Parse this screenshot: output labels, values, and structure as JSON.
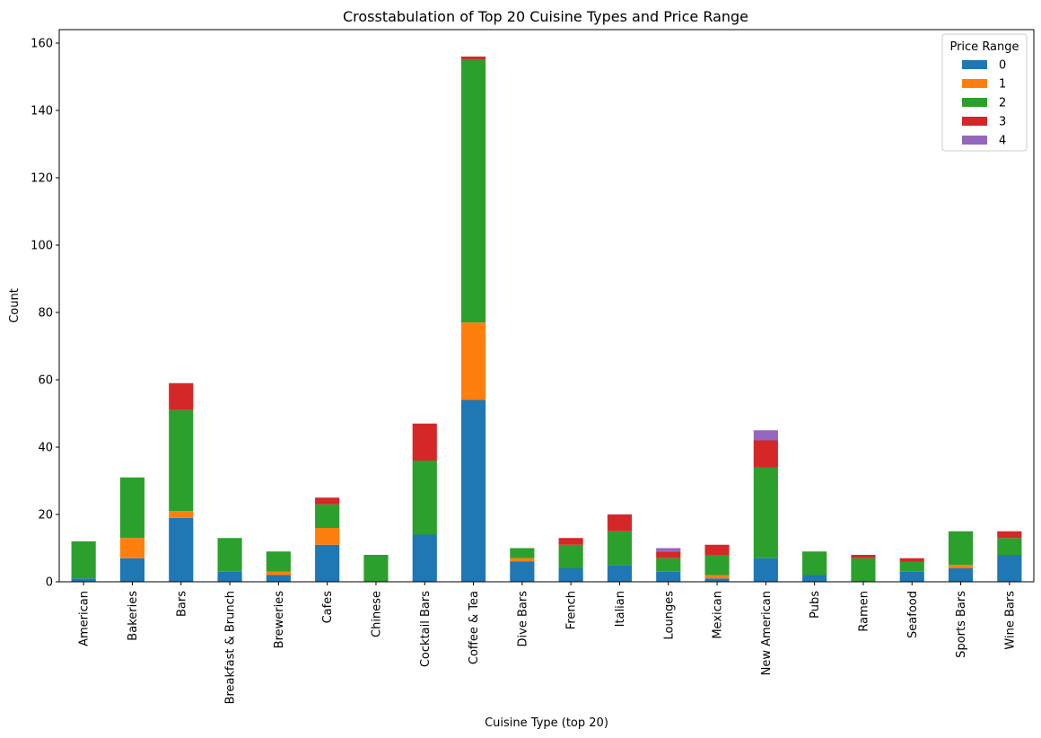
{
  "chart_data": {
    "type": "bar",
    "stacked": true,
    "title": "Crosstabulation of Top 20 Cuisine Types and Price Range",
    "xlabel": "Cuisine Type (top 20)",
    "ylabel": "Count",
    "ylim": [
      0,
      164
    ],
    "yticks": [
      0,
      20,
      40,
      60,
      80,
      100,
      120,
      140,
      160
    ],
    "grid": false,
    "legend": {
      "title": "Price Range",
      "placement": "top-right"
    },
    "categories": [
      "American",
      "Bakeries",
      "Bars",
      "Breakfast & Brunch",
      "Breweries",
      "Cafes",
      "Chinese",
      "Cocktail Bars",
      "Coffee & Tea",
      "Dive Bars",
      "French",
      "Italian",
      "Lounges",
      "Mexican",
      "New American",
      "Pubs",
      "Ramen",
      "Seafood",
      "Sports Bars",
      "Wine Bars"
    ],
    "series": [
      {
        "name": "0",
        "color": "#1f77b4",
        "values": [
          1,
          7,
          19,
          3,
          2,
          11,
          0,
          14,
          54,
          6,
          4,
          5,
          3,
          1,
          7,
          2,
          0,
          3,
          4,
          8
        ]
      },
      {
        "name": "1",
        "color": "#ff7f0e",
        "values": [
          0,
          6,
          2,
          0,
          1,
          5,
          0,
          0,
          23,
          1,
          0,
          0,
          0,
          1,
          0,
          0,
          0,
          0,
          1,
          0
        ]
      },
      {
        "name": "2",
        "color": "#2ca02c",
        "values": [
          11,
          18,
          30,
          10,
          6,
          7,
          8,
          22,
          78,
          3,
          7,
          10,
          4,
          6,
          27,
          7,
          7,
          3,
          10,
          5
        ]
      },
      {
        "name": "3",
        "color": "#d62728",
        "values": [
          0,
          0,
          8,
          0,
          0,
          2,
          0,
          11,
          1,
          0,
          2,
          5,
          2,
          3,
          8,
          0,
          1,
          1,
          0,
          2
        ]
      },
      {
        "name": "4",
        "color": "#9467bd",
        "values": [
          0,
          0,
          0,
          0,
          0,
          0,
          0,
          0,
          0,
          0,
          0,
          0,
          1,
          0,
          3,
          0,
          0,
          0,
          0,
          0
        ]
      }
    ]
  }
}
